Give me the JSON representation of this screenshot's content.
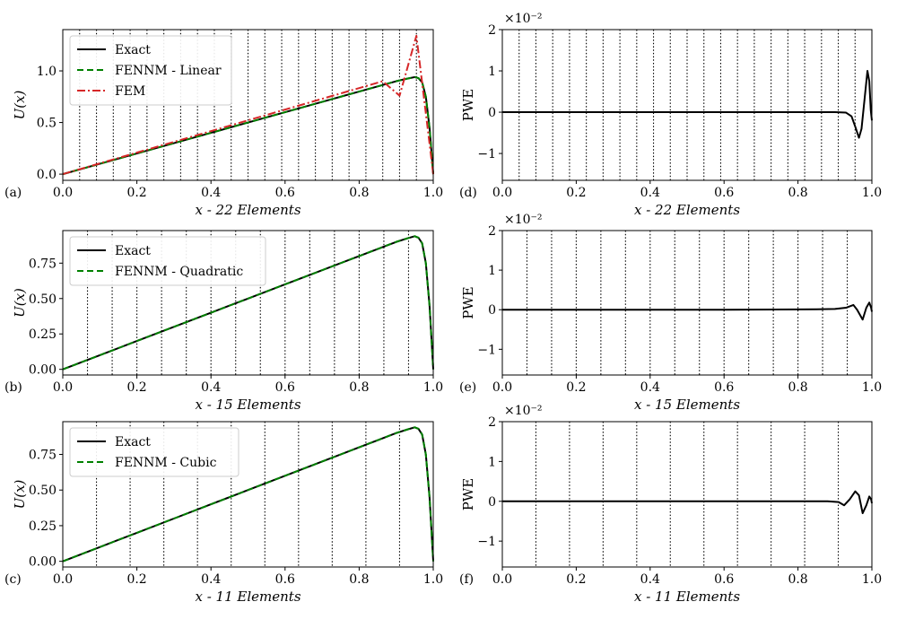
{
  "colors": {
    "exact": "#000000",
    "fennm": "#008000",
    "fem": "#d62728",
    "element_lines": "#000000"
  },
  "chart_data": [
    {
      "type": "line",
      "panel_label": "(a)",
      "xlabel": "x - 22 Elements",
      "ylabel": "U(x)",
      "xlim": [
        0,
        1
      ],
      "ylim": [
        -0.06,
        1.4
      ],
      "xticks": [
        0.0,
        0.2,
        0.4,
        0.6,
        0.8,
        1.0
      ],
      "xtick_labels": [
        "0.0",
        "0.2",
        "0.4",
        "0.6",
        "0.8",
        "1.0"
      ],
      "yticks": [
        0.0,
        0.5,
        1.0
      ],
      "ytick_labels": [
        "0.0",
        "0.5",
        "1.0"
      ],
      "element_count": 22,
      "legend_position": "top-left",
      "series": [
        {
          "name": "Exact",
          "style": "solid",
          "color": "#000000",
          "x": [
            0,
            0.1,
            0.2,
            0.3,
            0.4,
            0.5,
            0.6,
            0.7,
            0.8,
            0.85,
            0.9,
            0.93,
            0.95,
            0.96,
            0.97,
            0.98,
            0.99,
            1.0
          ],
          "y": [
            0,
            0.1,
            0.2,
            0.3,
            0.4,
            0.5,
            0.6,
            0.7,
            0.8,
            0.85,
            0.9,
            0.925,
            0.94,
            0.93,
            0.89,
            0.75,
            0.45,
            0
          ]
        },
        {
          "name": "FENNM - Linear",
          "style": "dashed",
          "color": "#008000",
          "x": [
            0,
            0.1,
            0.2,
            0.3,
            0.4,
            0.5,
            0.6,
            0.7,
            0.8,
            0.85,
            0.9,
            0.93,
            0.95,
            0.96,
            0.97,
            0.98,
            0.99,
            1.0
          ],
          "y": [
            0,
            0.1,
            0.2,
            0.3,
            0.4,
            0.5,
            0.6,
            0.7,
            0.8,
            0.85,
            0.9,
            0.925,
            0.94,
            0.93,
            0.89,
            0.75,
            0.45,
            0
          ]
        },
        {
          "name": "FEM",
          "style": "dashdot",
          "color": "#d62728",
          "x": [
            0,
            0.8636,
            0.9091,
            0.9545,
            1.0
          ],
          "y": [
            0,
            0.9,
            0.76,
            1.34,
            0
          ]
        }
      ]
    },
    {
      "type": "line",
      "panel_label": "(d)",
      "xlabel": "x - 22 Elements",
      "ylabel": "PWE",
      "scale_label": "×10⁻²",
      "xlim": [
        0,
        1
      ],
      "ylim": [
        -1.65,
        2.0
      ],
      "xticks": [
        0.0,
        0.2,
        0.4,
        0.6,
        0.8,
        1.0
      ],
      "xtick_labels": [
        "0.0",
        "0.2",
        "0.4",
        "0.6",
        "0.8",
        "1.0"
      ],
      "yticks": [
        -1,
        0,
        1,
        2
      ],
      "ytick_labels": [
        "−1",
        "0",
        "1",
        "2"
      ],
      "element_count": 22,
      "series": [
        {
          "style": "solid",
          "color": "#000000",
          "x": [
            0,
            0.3,
            0.6,
            0.9,
            0.93,
            0.945,
            0.955,
            0.965,
            0.972,
            0.98,
            0.988,
            0.993,
            0.997,
            1.0
          ],
          "y": [
            0,
            0,
            0,
            0,
            -0.01,
            -0.1,
            -0.35,
            -0.62,
            -0.4,
            0.3,
            1.0,
            0.75,
            0.05,
            -0.2
          ]
        }
      ]
    },
    {
      "type": "line",
      "panel_label": "(b)",
      "xlabel": "x - 15 Elements",
      "ylabel": "U(x)",
      "xlim": [
        0,
        1
      ],
      "ylim": [
        -0.04,
        0.98
      ],
      "xticks": [
        0.0,
        0.2,
        0.4,
        0.6,
        0.8,
        1.0
      ],
      "xtick_labels": [
        "0.0",
        "0.2",
        "0.4",
        "0.6",
        "0.8",
        "1.0"
      ],
      "yticks": [
        0.0,
        0.25,
        0.5,
        0.75
      ],
      "ytick_labels": [
        "0.00",
        "0.25",
        "0.50",
        "0.75"
      ],
      "element_count": 15,
      "legend_position": "top-left",
      "series": [
        {
          "name": "Exact",
          "style": "solid",
          "color": "#000000",
          "x": [
            0,
            0.1,
            0.2,
            0.3,
            0.4,
            0.5,
            0.6,
            0.7,
            0.8,
            0.85,
            0.9,
            0.93,
            0.95,
            0.96,
            0.97,
            0.98,
            0.99,
            1.0
          ],
          "y": [
            0,
            0.1,
            0.2,
            0.3,
            0.4,
            0.5,
            0.6,
            0.7,
            0.8,
            0.85,
            0.9,
            0.925,
            0.94,
            0.93,
            0.89,
            0.75,
            0.45,
            0
          ]
        },
        {
          "name": "FENNM - Quadratic",
          "style": "dashed",
          "color": "#008000",
          "x": [
            0,
            0.1,
            0.2,
            0.3,
            0.4,
            0.5,
            0.6,
            0.7,
            0.8,
            0.85,
            0.9,
            0.93,
            0.95,
            0.96,
            0.97,
            0.98,
            0.99,
            1.0
          ],
          "y": [
            0,
            0.1,
            0.2,
            0.3,
            0.4,
            0.5,
            0.6,
            0.7,
            0.8,
            0.85,
            0.9,
            0.925,
            0.94,
            0.93,
            0.89,
            0.75,
            0.45,
            0
          ]
        }
      ]
    },
    {
      "type": "line",
      "panel_label": "(e)",
      "xlabel": "x - 15 Elements",
      "ylabel": "PWE",
      "scale_label": "×10⁻²",
      "xlim": [
        0,
        1
      ],
      "ylim": [
        -1.65,
        2.0
      ],
      "xticks": [
        0.0,
        0.2,
        0.4,
        0.6,
        0.8,
        1.0
      ],
      "xtick_labels": [
        "0.0",
        "0.2",
        "0.4",
        "0.6",
        "0.8",
        "1.0"
      ],
      "yticks": [
        -1,
        0,
        1,
        2
      ],
      "ytick_labels": [
        "−1",
        "0",
        "1",
        "2"
      ],
      "element_count": 15,
      "series": [
        {
          "style": "solid",
          "color": "#000000",
          "x": [
            0,
            0.3,
            0.6,
            0.85,
            0.9,
            0.93,
            0.95,
            0.96,
            0.975,
            0.985,
            0.993,
            0.998,
            1.0
          ],
          "y": [
            0,
            0,
            0,
            0.01,
            0.02,
            0.05,
            0.12,
            0.0,
            -0.25,
            0.05,
            0.18,
            0.05,
            -0.05
          ]
        }
      ]
    },
    {
      "type": "line",
      "panel_label": "(c)",
      "xlabel": "x - 11 Elements",
      "ylabel": "U(x)",
      "xlim": [
        0,
        1
      ],
      "ylim": [
        -0.04,
        0.98
      ],
      "xticks": [
        0.0,
        0.2,
        0.4,
        0.6,
        0.8,
        1.0
      ],
      "xtick_labels": [
        "0.0",
        "0.2",
        "0.4",
        "0.6",
        "0.8",
        "1.0"
      ],
      "yticks": [
        0.0,
        0.25,
        0.5,
        0.75
      ],
      "ytick_labels": [
        "0.00",
        "0.25",
        "0.50",
        "0.75"
      ],
      "element_count": 11,
      "legend_position": "top-left",
      "series": [
        {
          "name": "Exact",
          "style": "solid",
          "color": "#000000",
          "x": [
            0,
            0.1,
            0.2,
            0.3,
            0.4,
            0.5,
            0.6,
            0.7,
            0.8,
            0.85,
            0.9,
            0.93,
            0.95,
            0.96,
            0.97,
            0.98,
            0.99,
            1.0
          ],
          "y": [
            0,
            0.1,
            0.2,
            0.3,
            0.4,
            0.5,
            0.6,
            0.7,
            0.8,
            0.85,
            0.9,
            0.925,
            0.94,
            0.93,
            0.89,
            0.75,
            0.45,
            0
          ]
        },
        {
          "name": "FENNM - Cubic",
          "style": "dashed",
          "color": "#008000",
          "x": [
            0,
            0.1,
            0.2,
            0.3,
            0.4,
            0.5,
            0.6,
            0.7,
            0.8,
            0.85,
            0.9,
            0.93,
            0.95,
            0.96,
            0.97,
            0.98,
            0.99,
            1.0
          ],
          "y": [
            0,
            0.1,
            0.2,
            0.3,
            0.4,
            0.5,
            0.6,
            0.7,
            0.8,
            0.85,
            0.9,
            0.925,
            0.94,
            0.93,
            0.89,
            0.75,
            0.45,
            0
          ]
        }
      ]
    },
    {
      "type": "line",
      "panel_label": "(f)",
      "xlabel": "x - 11 Elements",
      "ylabel": "PWE",
      "scale_label": "×10⁻²",
      "xlim": [
        0,
        1
      ],
      "ylim": [
        -1.65,
        2.0
      ],
      "xticks": [
        0.0,
        0.2,
        0.4,
        0.6,
        0.8,
        1.0
      ],
      "xtick_labels": [
        "0.0",
        "0.2",
        "0.4",
        "0.6",
        "0.8",
        "1.0"
      ],
      "yticks": [
        -1,
        0,
        1,
        2
      ],
      "ytick_labels": [
        "−1",
        "0",
        "1",
        "2"
      ],
      "element_count": 11,
      "series": [
        {
          "style": "solid",
          "color": "#000000",
          "x": [
            0,
            0.3,
            0.6,
            0.88,
            0.91,
            0.925,
            0.94,
            0.955,
            0.965,
            0.975,
            0.985,
            0.993,
            0.998,
            1.0
          ],
          "y": [
            0,
            0,
            0,
            0,
            -0.02,
            -0.1,
            0.05,
            0.25,
            0.15,
            -0.3,
            -0.1,
            0.12,
            0.05,
            -0.05
          ]
        }
      ]
    }
  ]
}
